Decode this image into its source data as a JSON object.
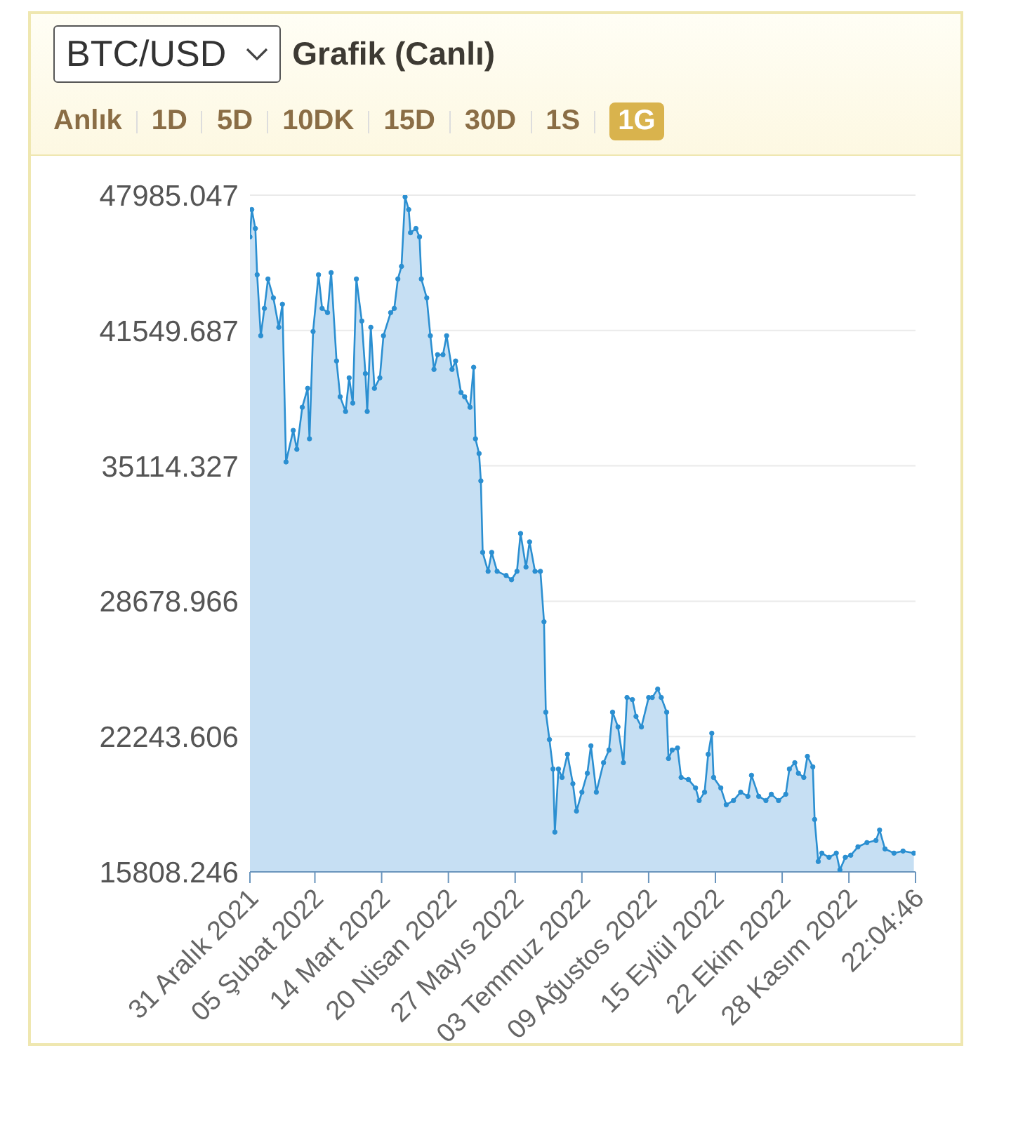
{
  "chart_data": {
    "type": "area",
    "title": "Grafik (Canlı)",
    "subtitle": "BTC/USD",
    "annotations": [
      "Anlık",
      "1D",
      "5D",
      "10DK",
      "15D",
      "30D",
      "1S",
      "1G"
    ],
    "x": [
      "2021-12-31",
      "2022-01-01",
      "2022-01-03",
      "2022-01-04",
      "2022-01-06",
      "2022-01-08",
      "2022-01-10",
      "2022-01-13",
      "2022-01-16",
      "2022-01-18",
      "2022-01-20",
      "2022-01-24",
      "2022-01-26",
      "2022-01-29",
      "2022-02-01",
      "2022-02-02",
      "2022-02-04",
      "2022-02-07",
      "2022-02-09",
      "2022-02-12",
      "2022-02-14",
      "2022-02-17",
      "2022-02-19",
      "2022-02-22",
      "2022-02-24",
      "2022-02-26",
      "2022-02-28",
      "2022-03-03",
      "2022-03-05",
      "2022-03-06",
      "2022-03-08",
      "2022-03-10",
      "2022-03-13",
      "2022-03-15",
      "2022-03-19",
      "2022-03-21",
      "2022-03-23",
      "2022-03-25",
      "2022-03-27",
      "2022-03-29",
      "2022-03-30",
      "2022-04-02",
      "2022-04-04",
      "2022-04-05",
      "2022-04-08",
      "2022-04-10",
      "2022-04-12",
      "2022-04-14",
      "2022-04-17",
      "2022-04-19",
      "2022-04-22",
      "2022-04-24",
      "2022-04-27",
      "2022-04-29",
      "2022-05-02",
      "2022-05-04",
      "2022-05-05",
      "2022-05-07",
      "2022-05-08",
      "2022-05-09",
      "2022-05-12",
      "2022-05-14",
      "2022-05-17",
      "2022-05-22",
      "2022-05-25",
      "2022-05-28",
      "2022-05-30",
      "2022-06-02",
      "2022-06-04",
      "2022-06-07",
      "2022-06-10",
      "2022-06-12",
      "2022-06-13",
      "2022-06-15",
      "2022-06-17",
      "2022-06-18",
      "2022-06-20",
      "2022-06-22",
      "2022-06-25",
      "2022-06-28",
      "2022-06-30",
      "2022-07-03",
      "2022-07-06",
      "2022-07-08",
      "2022-07-11",
      "2022-07-15",
      "2022-07-18",
      "2022-07-20",
      "2022-07-23",
      "2022-07-26",
      "2022-07-28",
      "2022-07-31",
      "2022-08-02",
      "2022-08-05",
      "2022-08-09",
      "2022-08-11",
      "2022-08-14",
      "2022-08-16",
      "2022-08-19",
      "2022-08-20",
      "2022-08-22",
      "2022-08-25",
      "2022-08-27",
      "2022-08-31",
      "2022-09-04",
      "2022-09-06",
      "2022-09-09",
      "2022-09-11",
      "2022-09-13",
      "2022-09-14",
      "2022-09-18",
      "2022-09-21",
      "2022-09-25",
      "2022-09-29",
      "2022-10-03",
      "2022-10-05",
      "2022-10-09",
      "2022-10-13",
      "2022-10-16",
      "2022-10-20",
      "2022-10-24",
      "2022-10-26",
      "2022-10-29",
      "2022-10-31",
      "2022-11-03",
      "2022-11-05",
      "2022-11-08",
      "2022-11-09",
      "2022-11-11",
      "2022-11-13",
      "2022-11-17",
      "2022-11-21",
      "2022-11-23",
      "2022-11-26",
      "2022-11-29",
      "2022-12-03",
      "2022-12-08",
      "2022-12-13",
      "2022-12-15",
      "2022-12-18",
      "2022-12-23",
      "2022-12-28",
      "2023-01-03"
    ],
    "series": [
      {
        "color": "#2b8fd1",
        "values": [
          46000,
          47300,
          46400,
          44200,
          41300,
          42600,
          44000,
          43100,
          41700,
          42800,
          35300,
          36800,
          35900,
          37900,
          38800,
          36400,
          41500,
          44200,
          42600,
          42400,
          44300,
          40100,
          38400,
          37700,
          39300,
          38100,
          44000,
          42000,
          39500,
          37700,
          41700,
          38800,
          39300,
          41300,
          42400,
          42600,
          44000,
          44600,
          47900,
          47300,
          46200,
          46400,
          46000,
          44000,
          43100,
          41300,
          39700,
          40400,
          40400,
          41300,
          39700,
          40100,
          38600,
          38400,
          37900,
          39800,
          36400,
          35700,
          34400,
          31000,
          30100,
          31000,
          30100,
          29900,
          29700,
          30100,
          31900,
          30300,
          31500,
          30100,
          30100,
          27700,
          23400,
          22100,
          20700,
          17700,
          20700,
          20300,
          21400,
          20000,
          18700,
          19600,
          20500,
          21800,
          19600,
          21000,
          21600,
          23400,
          22700,
          21000,
          24100,
          24000,
          23200,
          22700,
          24100,
          24100,
          24500,
          24100,
          23400,
          21200,
          21600,
          21700,
          20300,
          20200,
          19800,
          19200,
          19600,
          21400,
          22400,
          20300,
          19800,
          19000,
          19200,
          19600,
          19400,
          20400,
          19400,
          19200,
          19500,
          19200,
          19500,
          20700,
          21000,
          20500,
          20300,
          21300,
          20800,
          18300,
          16300,
          16700,
          16500,
          16700,
          15900,
          16500,
          16600,
          17000,
          17200,
          17300,
          17800,
          16900,
          16700,
          16800,
          16700
        ]
      }
    ],
    "xlim": [
      "2021-12-31",
      "2023-01-03T22:04"
    ],
    "xticks": [
      {
        "value": "2021-12-31",
        "label": "31 Aralık 2021"
      },
      {
        "value": "2022-02-05",
        "label": "05 Şubat 2022"
      },
      {
        "value": "2022-03-14",
        "label": "14 Mart 2022"
      },
      {
        "value": "2022-04-20",
        "label": "20 Nisan 2022"
      },
      {
        "value": "2022-05-27",
        "label": "27 Mayıs 2022"
      },
      {
        "value": "2022-07-03",
        "label": "03 Temmuz 2022"
      },
      {
        "value": "2022-08-09",
        "label": "09 Ağustos 2022"
      },
      {
        "value": "2022-09-15",
        "label": "15 Eylül 2022"
      },
      {
        "value": "2022-10-22",
        "label": "22 Ekim 2022"
      },
      {
        "value": "2022-11-28",
        "label": "28 Kasım 2022"
      },
      {
        "value": "2023-01-03T22:04",
        "label": "22:04:46"
      }
    ],
    "ylim": [
      15808.246,
      47985.047
    ],
    "yticks": [
      15808.246,
      22243.606,
      28678.966,
      35114.327,
      41549.687,
      47985.047
    ],
    "grid": "y",
    "marker": "circle"
  }
}
